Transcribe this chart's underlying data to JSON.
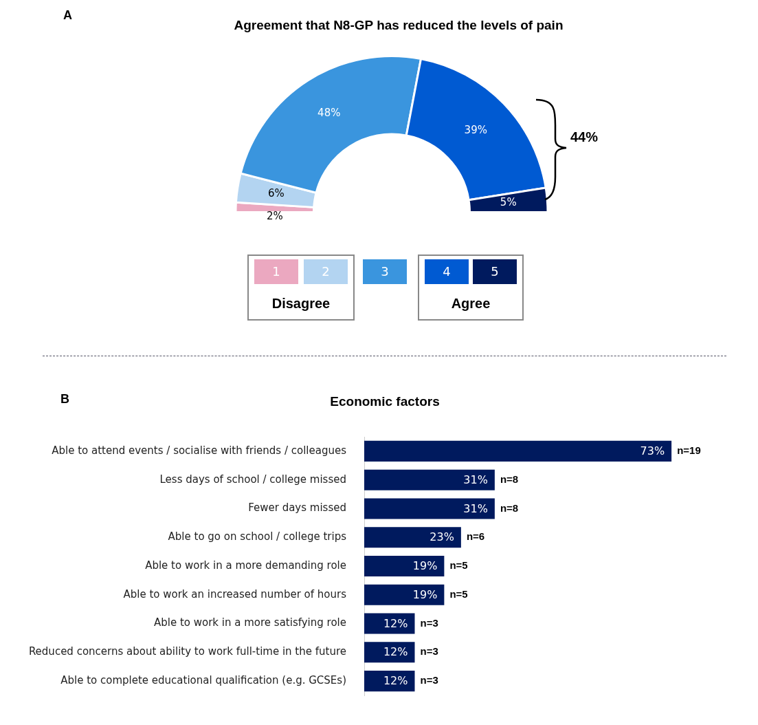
{
  "chart_data": [
    {
      "type": "donut",
      "title": "Agreement that N8-GP has reduced the levels of pain",
      "categories": [
        "1",
        "2",
        "3",
        "4",
        "5"
      ],
      "values": [
        2,
        6,
        48,
        39,
        5
      ],
      "colors": [
        "#eba8c0",
        "#b3d4f1",
        "#3a95de",
        "#005ad2",
        "#001a5e"
      ],
      "value_labels": [
        "2%",
        "6%",
        "48%",
        "39%",
        "5%"
      ],
      "legend": "bottom",
      "annotations": [
        "A",
        "44%",
        "Disagree",
        "Agree"
      ]
    },
    {
      "type": "bar",
      "orientation": "horizontal",
      "title": "Economic factors",
      "categories": [
        "Able to attend events / socialise with friends / colleagues",
        "Less days of school / college missed",
        "Fewer days missed",
        "Able to go on school / college trips",
        "Able to work in a more demanding role",
        "Able to work an increased number of hours",
        "Able to work in a more satisfying role",
        "Reduced concerns about ability to work full-time in the future",
        "Able to complete educational qualification (e.g. GCSEs)"
      ],
      "values": [
        73,
        31,
        31,
        23,
        19,
        19,
        12,
        12,
        12
      ],
      "color": "#001a5e",
      "value_labels": [
        "73%",
        "31%",
        "31%",
        "23%",
        "19%",
        "19%",
        "12%",
        "12%",
        "12%"
      ],
      "tick_labels": "y",
      "annotations": [
        "B",
        {
          "text": "n=19",
          "x": 73,
          "y": "Able to attend events / socialise with friends / colleagues"
        },
        {
          "text": "n=8",
          "x": 31,
          "y": "Less days of school / college missed"
        },
        {
          "text": "n=8",
          "x": 31,
          "y": "Fewer days missed"
        },
        {
          "text": "n=6",
          "x": 23,
          "y": "Able to go on school / college trips"
        },
        {
          "text": "n=5",
          "x": 19,
          "y": "Able to work in a more demanding role"
        },
        {
          "text": "n=5",
          "x": 19,
          "y": "Able to work an increased number of hours"
        },
        {
          "text": "n=3",
          "x": 12,
          "y": "Able to work in a more satisfying role"
        },
        {
          "text": "n=3",
          "x": 12,
          "y": "Reduced concerns about ability to work full-time in the future"
        },
        {
          "text": "n=3",
          "x": 12,
          "y": "Able to complete educational qualification (e.g. GCSEs)"
        }
      ]
    }
  ]
}
